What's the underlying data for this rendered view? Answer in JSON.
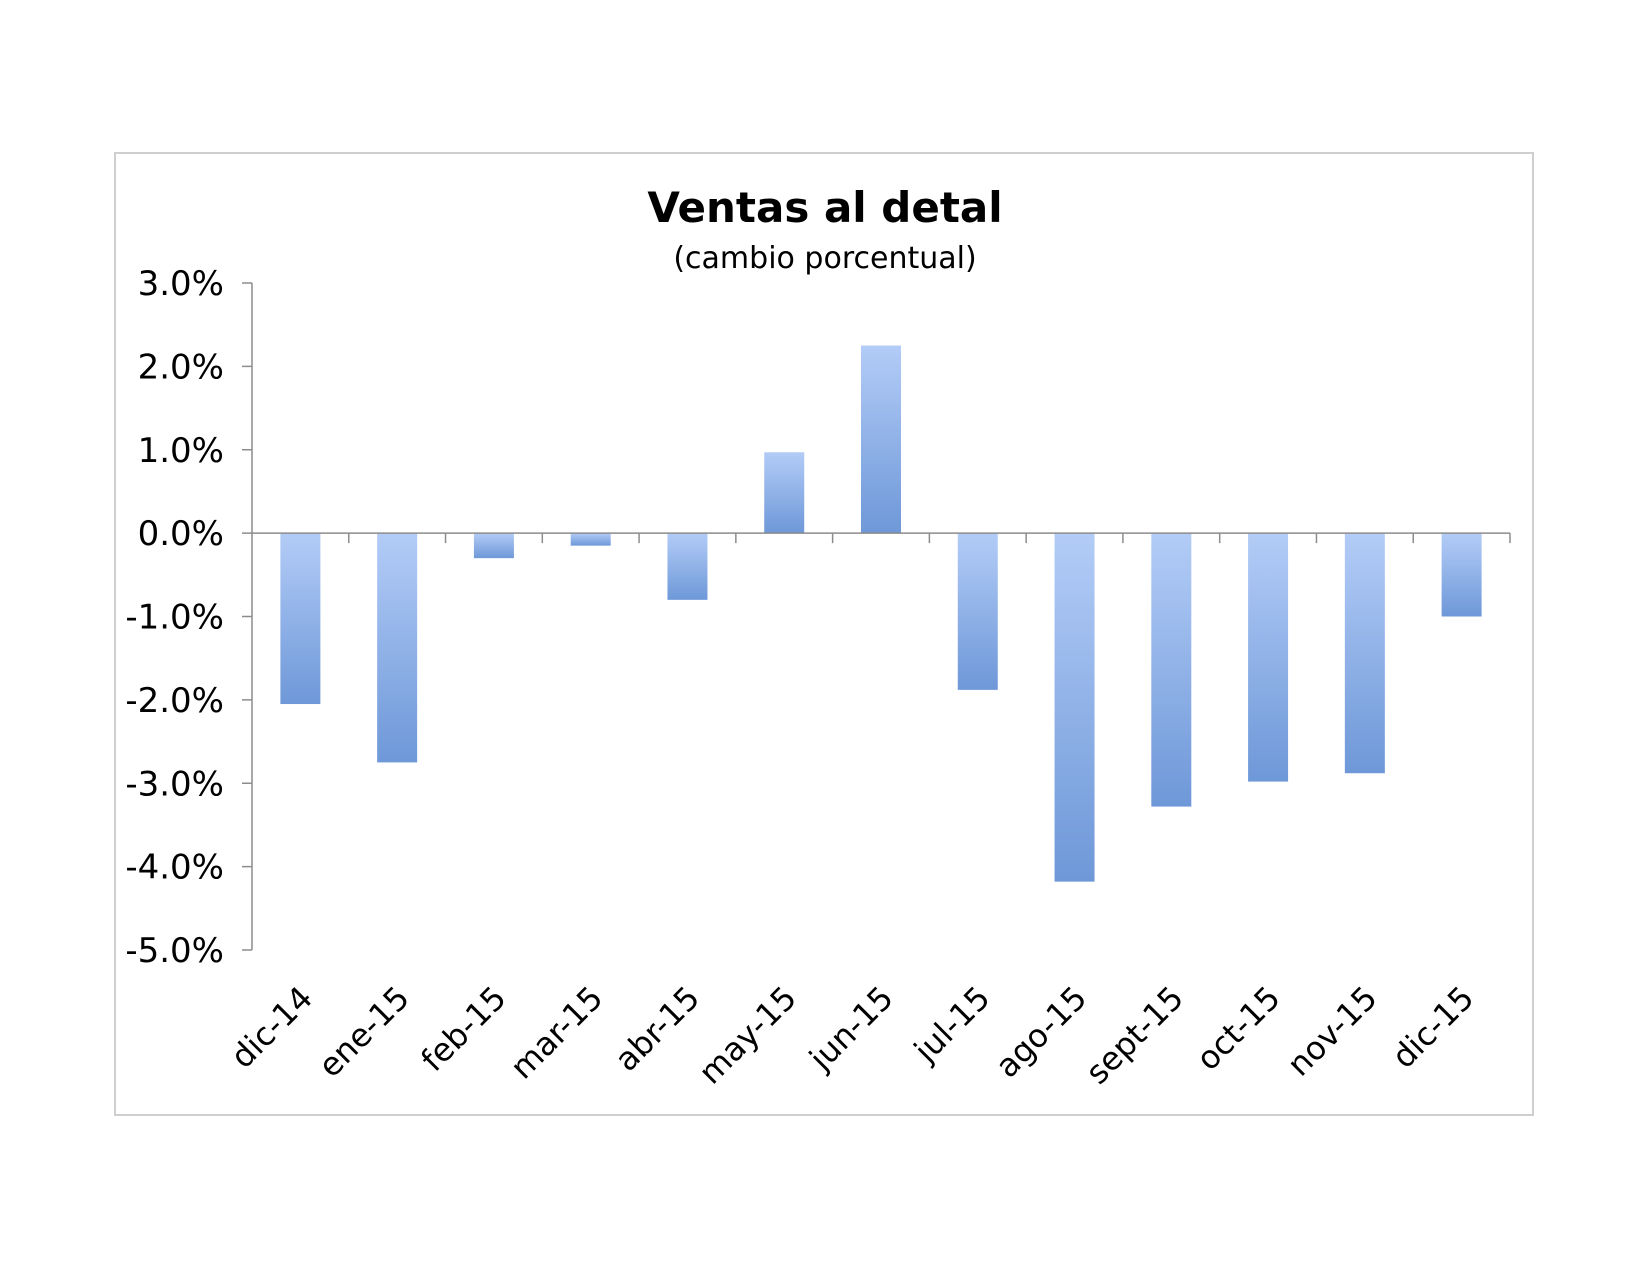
{
  "chart_data": {
    "type": "bar",
    "title": "Ventas al detal",
    "subtitle": "(cambio porcentual)",
    "xlabel": "",
    "ylabel": "",
    "categories": [
      "dic-14",
      "ene-15",
      "feb-15",
      "mar-15",
      "abr-15",
      "may-15",
      "jun-15",
      "jul-15",
      "ago-15",
      "sept-15",
      "oct-15",
      "nov-15",
      "dic-15"
    ],
    "values": [
      -2.05,
      -2.75,
      -0.3,
      -0.15,
      -0.8,
      0.97,
      2.25,
      -1.88,
      -4.18,
      -3.28,
      -2.98,
      -2.88,
      -1.0
    ],
    "ylim": [
      -5.0,
      3.0
    ],
    "yticks": [
      3.0,
      2.0,
      1.0,
      0.0,
      -1.0,
      -2.0,
      -3.0,
      -4.0,
      -5.0
    ],
    "ytick_labels": [
      "3.0%",
      "2.0%",
      "1.0%",
      "0.0%",
      "-1.0%",
      "-2.0%",
      "-3.0%",
      "-4.0%",
      "-5.0%"
    ],
    "grid": false,
    "legend": "none",
    "bar_gradient": {
      "light": "#b3ccf7",
      "dark": "#6e98d8"
    }
  }
}
